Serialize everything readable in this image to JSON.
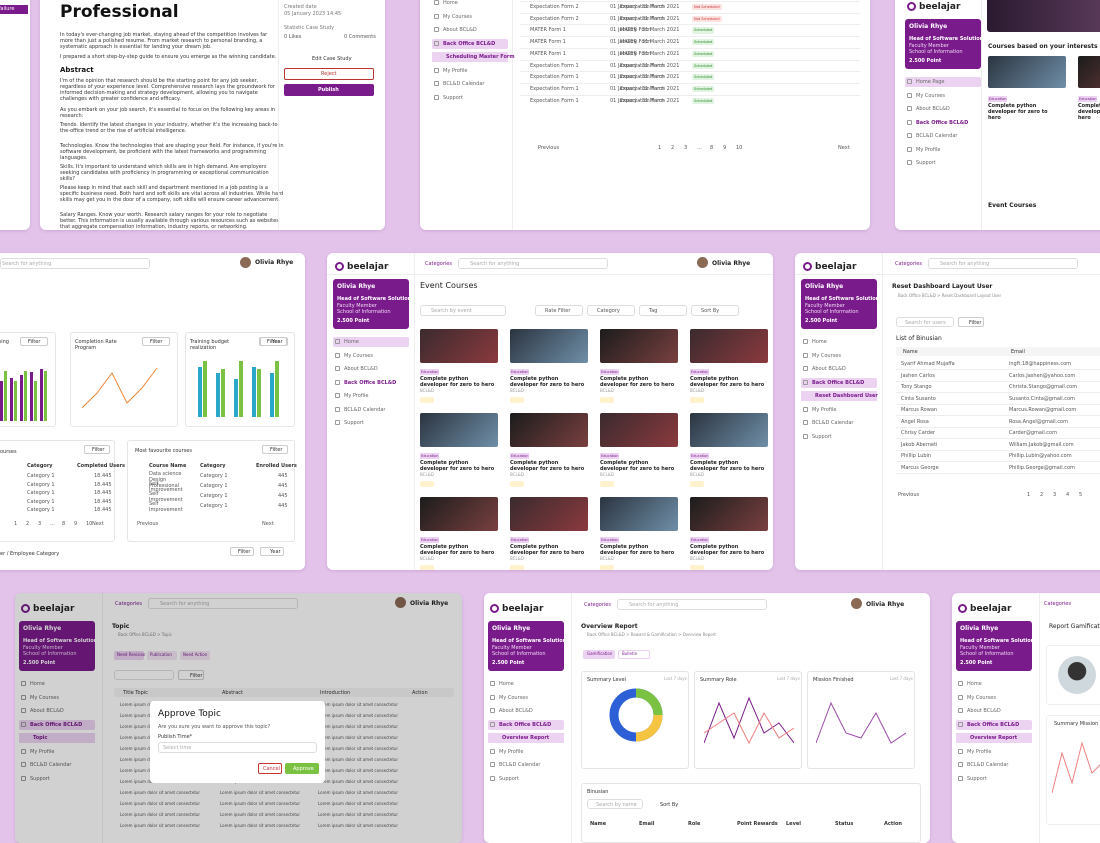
{
  "sidebar": {
    "brand": "beelajar",
    "profile": {
      "name": "Olivia Rhye",
      "role": "Head of Software Solution",
      "faculty": "Faculty Member",
      "school": "School of Information",
      "points": "2.500 Point"
    },
    "menu": [
      "Home",
      "My Courses",
      "About BCL&D",
      "Back Office BCL&D",
      "My Profile",
      "BCL&D Calendar",
      "Support"
    ]
  },
  "topbar": {
    "categories": "Categories",
    "search": "Search for anything",
    "user": "Olivia Rhye"
  },
  "blog": {
    "partial_label": "Failure",
    "title": "Professional",
    "intro": [
      "In today's ever-changing job market, staying ahead of the competition involves far more than just a polished resume. From market research to personal branding, a systematic approach is essential for landing your dream job.",
      "I prepared a short step-by-step guide to ensure you emerge as the winning candidate."
    ],
    "abstract_heading": "Abstract",
    "paragraphs": [
      "I'm of the opinion that research should be the starting point for any job seeker, regardless of your experience level. Comprehensive research lays the groundwork for informed decision-making and strategy development, allowing you to navigate challenges with greater confidence and efficacy.",
      "As you embark on your job search, it's essential to focus on the following key areas in research:",
      "Trends. Identify the latest changes in your industry, whether it's the increasing back-to-the-office trend or the rise of artificial intelligence.",
      "Technologies. Know the technologies that are shaping your field. For instance, if you're in software development, be proficient with the latest frameworks and programming languages.",
      "Skills. It's important to understand which skills are in high demand. Are employers seeking candidates with proficiency in programming or exceptional communication skills?",
      "Please keep in mind that each skill and department mentioned in a job posting is a specific business need. Both hard and soft skills are vital across all industries. While hard skills may get you in the door of a company, soft skills will ensure career advancement.",
      "Salary Ranges. Know your worth. Research salary ranges for your role to negotiate better. This information is usually available through various resources such as websites that aggregate compensation information, industry reports, or networking."
    ],
    "side": {
      "created_label": "Created date",
      "created": "05 January 2023 14:45",
      "statistic": "Statistic Case Study",
      "likes": "0 Likes",
      "comments": "0 Comments",
      "edit": "Edit Case Study",
      "reject": "Reject",
      "publish": "Publish"
    }
  },
  "schedule": {
    "sub": "Scheduling Master Form",
    "rows": [
      [
        "Expectation Form 2",
        "Expectation Form",
        "01 January - 31 March 2021",
        "Not Scheduled"
      ],
      [
        "Expectation Form 2",
        "Expectation Form",
        "01 January - 31 March 2021",
        "Not Scheduled"
      ],
      [
        "MATER Form 1",
        "MATER Form",
        "01 January - 31 March 2021",
        "Scheduled"
      ],
      [
        "MATER Form 1",
        "MATER Form",
        "01 January - 31 March 2021",
        "Scheduled"
      ],
      [
        "MATER Form 1",
        "MATER Form",
        "01 January - 31 March 2021",
        "Scheduled"
      ],
      [
        "Expectation Form 1",
        "Expectation Form",
        "01 January - 31 March 2021",
        "Scheduled"
      ],
      [
        "Expectation Form 1",
        "Expectation Form",
        "01 January - 31 March 2021",
        "Scheduled"
      ],
      [
        "Expectation Form 1",
        "Expectation Form",
        "01 January - 31 March 2021",
        "Scheduled"
      ],
      [
        "Expectation Form 1",
        "Expectation Form",
        "01 January - 31 March 2021",
        "Scheduled"
      ]
    ],
    "prev": "Previous",
    "next": "Next",
    "pages": [
      "1",
      "2",
      "3",
      "...",
      "8",
      "9",
      "10"
    ]
  },
  "interests": {
    "menu": [
      "Home Page",
      "My Courses",
      "About BCL&D",
      "Back Office BCL&D",
      "BCL&D Calendar",
      "My Profile",
      "Support"
    ],
    "heading": "Courses based on your interests",
    "course": "Complete python developer for zero to hero",
    "tag": "Education",
    "events": "Event Courses"
  },
  "dashboard": {
    "partial_chart": "ening",
    "filter": "Filter",
    "year": "Year",
    "chart1": "Completion Rate Program",
    "chart2": "Training budget realization",
    "partial_table": "ourses",
    "left_headers": [
      "Category",
      "Completed Users"
    ],
    "left_rows": [
      [
        "Category 1",
        "18.445"
      ],
      [
        "Category 1",
        "18.445"
      ],
      [
        "Category 1",
        "18.445"
      ],
      [
        "Category 1",
        "18.445"
      ],
      [
        "Category 1",
        "18.445"
      ]
    ],
    "fav_title": "Most favourite courses",
    "fav_headers": [
      "Course Name",
      "Category",
      "Enrolled Users"
    ],
    "fav_rows": [
      [
        "Data science Design Professional",
        "Category 1",
        "445"
      ],
      [
        "Self Improvement",
        "Category 1",
        "445"
      ],
      [
        "Self Improvement",
        "Category 1",
        "445"
      ],
      [
        "Self Improvement",
        "Category 1",
        "445"
      ]
    ],
    "bottom": "er / Employee Category"
  },
  "events": {
    "title": "Event Courses",
    "search": "Search by event",
    "filters": [
      "Rate Filter",
      "Category",
      "Tag",
      "Sort By"
    ],
    "course": "Complete python developer for zero to hero",
    "org": "BCL&D",
    "tag": "Education"
  },
  "reset": {
    "sub": "Reset Dashboard User",
    "title": "Reset Dashboard Layout User",
    "crumb": "Back Office BCL&D > Reset Dashboard Layout User",
    "search": "Search for users",
    "filter": "Filter",
    "list": "List of Binusian",
    "headers": [
      "Name",
      "Email"
    ],
    "rows": [
      [
        "Syarif Ahmad Mujaffa",
        "ingft.18@happiness.com"
      ],
      [
        "Jashen Carlos",
        "Carlos.Jashen@yahoo.com"
      ],
      [
        "Tony Stango",
        "Christa.Stango@gmail.com"
      ],
      [
        "Cinta Susanto",
        "Susanto.Cinta@gmail.com"
      ],
      [
        "Marcus Rowan",
        "Marcus.Rowan@gmail.com"
      ],
      [
        "Angel Rosa",
        "Rosa.Angel@gmail.com"
      ],
      [
        "Chrisy Carder",
        "Carder@gmail.com"
      ],
      [
        "Jakob Aberneti",
        "William.Jakob@gmail.com"
      ],
      [
        "Phillip Lubin",
        "Phillip.Lubin@yahoo.com"
      ],
      [
        "Marcus George",
        "Phillip.George@gmail.com"
      ]
    ],
    "prev": "Previous",
    "pages": [
      "1",
      "2",
      "3",
      "4",
      "5"
    ]
  },
  "topic": {
    "sub": "Topic",
    "title": "Topic",
    "crumb": "Back Office BCL&D > Topic",
    "tabs": [
      "Need Revision",
      "Publication",
      "Need Action"
    ],
    "filter": "Filter",
    "headers": [
      "Title Topic",
      "Abstract",
      "Introduction",
      "Action"
    ],
    "cell": "Lorem ipsum dolor sit amet consectetur",
    "modal": {
      "title": "Approve Topic",
      "text": "Are you sure you want to approve this topic?",
      "label": "Publish Time*",
      "placeholder": "Select time",
      "cancel": "Cancel",
      "approve": "Approve"
    }
  },
  "overview": {
    "sub": "Overview Report",
    "title": "Overview Report",
    "crumb": "Back Office BCL&D > Reward & Gamification > Overview Report",
    "tabs": [
      "Gamification",
      "Bulletin"
    ],
    "cards": [
      "Summary Level",
      "Summary Role",
      "Mission Finished"
    ],
    "period": "Last 7 days",
    "section": "Binusian",
    "search": "Search by name",
    "sort": "Sort By",
    "headers": [
      "Name",
      "Email",
      "Role",
      "Point Rewards",
      "Level",
      "Status",
      "Action"
    ]
  },
  "report": {
    "title": "Report Gamification",
    "summary": "Summary Mission"
  }
}
